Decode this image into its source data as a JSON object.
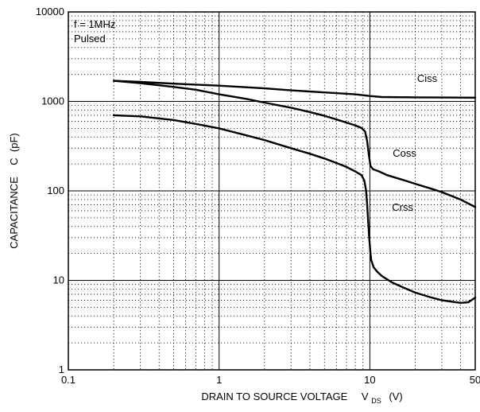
{
  "chart_data": {
    "type": "line",
    "title": "",
    "xlabel": "DRAIN TO SOURCE VOLTAGE",
    "xlabel_symbol": "V",
    "xlabel_subscript": "DS",
    "xlabel_unit": "(V)",
    "ylabel": "CAPACITANCE    C  (pF)",
    "x_scale": "log",
    "y_scale": "log",
    "xlim": [
      0.1,
      50
    ],
    "ylim": [
      1,
      10000
    ],
    "x_tick_values": [
      0.1,
      1,
      10,
      50
    ],
    "x_tick_labels": [
      "0.1",
      "1",
      "10",
      "50"
    ],
    "y_tick_values": [
      1,
      10,
      100,
      1000,
      10000
    ],
    "y_tick_labels": [
      "1",
      "10",
      "100",
      "1000",
      "10000"
    ],
    "grid": "major solid, minor dotted",
    "annotations": [
      "f = 1MHz",
      "Pulsed"
    ],
    "series": [
      {
        "name": "Ciss",
        "label_at": [
          24,
          1650
        ],
        "x": [
          0.2,
          0.3,
          0.5,
          1,
          2,
          3,
          5,
          8,
          10,
          12,
          20,
          30,
          50
        ],
        "y": [
          1700,
          1650,
          1580,
          1500,
          1400,
          1330,
          1260,
          1200,
          1150,
          1120,
          1110,
          1105,
          1100
        ]
      },
      {
        "name": "Coss",
        "label_at": [
          17,
          240
        ],
        "x": [
          0.2,
          0.3,
          0.5,
          0.7,
          1,
          1.5,
          2,
          3,
          4,
          5,
          6,
          7,
          8,
          8.8,
          9.3,
          9.6,
          9.85,
          10.1,
          10.5,
          11.5,
          13,
          16,
          20,
          25,
          30,
          40,
          50
        ],
        "y": [
          1700,
          1600,
          1450,
          1350,
          1200,
          1070,
          970,
          850,
          760,
          690,
          630,
          580,
          540,
          505,
          460,
          360,
          250,
          190,
          175,
          165,
          150,
          135,
          120,
          107,
          97,
          80,
          66
        ]
      },
      {
        "name": "Crss",
        "label_at": [
          16.5,
          60
        ],
        "x": [
          0.2,
          0.3,
          0.5,
          0.7,
          1,
          1.5,
          2,
          3,
          4,
          5,
          6,
          7,
          8,
          8.8,
          9.2,
          9.45,
          9.6,
          9.75,
          9.9,
          10.05,
          10.2,
          10.6,
          11.2,
          12,
          14,
          17,
          20,
          25,
          30,
          40,
          45,
          50
        ],
        "y": [
          700,
          680,
          620,
          560,
          500,
          420,
          370,
          300,
          260,
          230,
          205,
          185,
          165,
          150,
          130,
          100,
          70,
          45,
          30,
          22,
          17,
          14,
          12.5,
          11.2,
          9.5,
          8.2,
          7.3,
          6.5,
          6.0,
          5.6,
          5.7,
          6.4
        ]
      }
    ]
  }
}
